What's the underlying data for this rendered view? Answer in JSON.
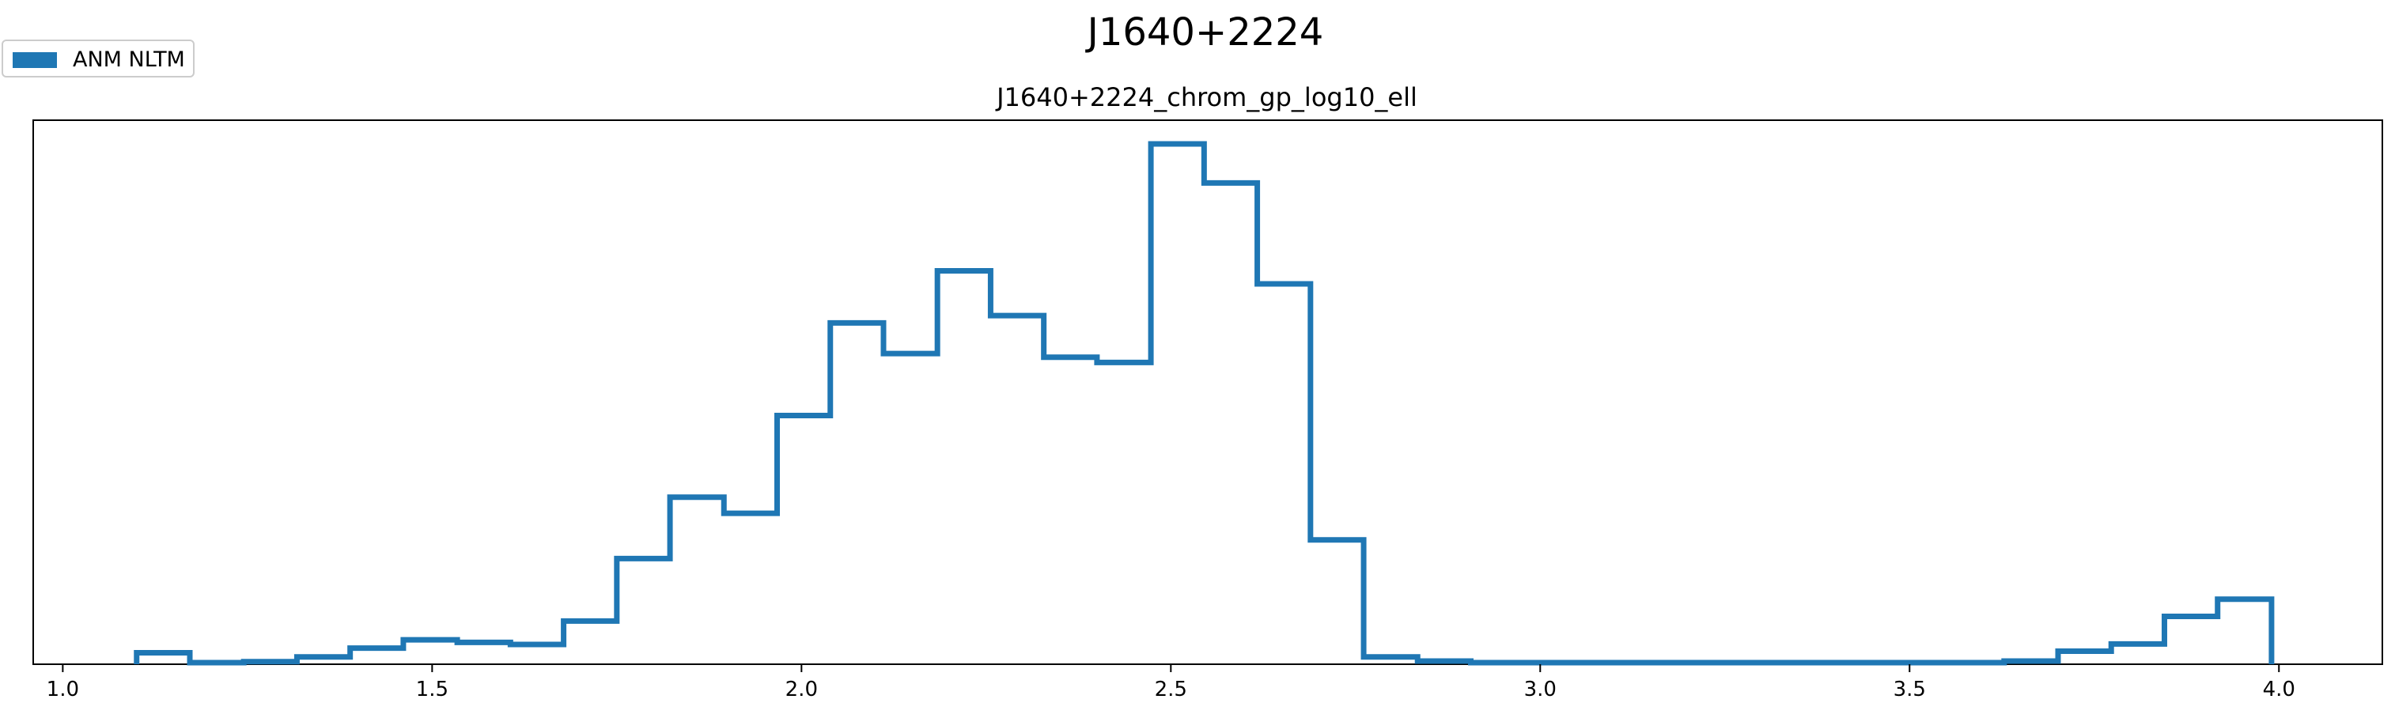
{
  "figure": {
    "suptitle": "J1640+2224"
  },
  "legend": {
    "entries": [
      {
        "label": "ANM NLTM",
        "color": "#1f77b4"
      }
    ]
  },
  "chart_data": {
    "type": "histogram",
    "title": "J1640+2224_chrom_gp_log10_ell",
    "xlabel": "",
    "ylabel": "",
    "xlim": [
      0.96,
      4.14
    ],
    "ylim": [
      0,
      1.0
    ],
    "xticks": [
      1.0,
      1.5,
      2.0,
      2.5,
      3.0,
      3.5,
      4.0
    ],
    "xtick_labels": [
      "1.0",
      "1.5",
      "2.0",
      "2.5",
      "3.0",
      "3.5",
      "4.0"
    ],
    "yticks_visible": false,
    "grid": false,
    "legend_position": "outside-top-left",
    "histtype": "step",
    "series": [
      {
        "name": "ANM NLTM",
        "color": "#1f77b4",
        "bin_edges": [
          1.1,
          1.172,
          1.245,
          1.317,
          1.389,
          1.461,
          1.534,
          1.606,
          1.678,
          1.75,
          1.822,
          1.895,
          1.967,
          2.039,
          2.111,
          2.184,
          2.256,
          2.328,
          2.4,
          2.473,
          2.545,
          2.617,
          2.689,
          2.761,
          2.834,
          2.906,
          2.978,
          3.05,
          3.123,
          3.195,
          3.267,
          3.339,
          3.412,
          3.484,
          3.556,
          3.628,
          3.701,
          3.773,
          3.845,
          3.917,
          3.99
        ],
        "values": [
          0.022,
          0.003,
          0.005,
          0.014,
          0.031,
          0.047,
          0.042,
          0.038,
          0.083,
          0.203,
          0.321,
          0.29,
          0.478,
          0.656,
          0.597,
          0.756,
          0.67,
          0.59,
          0.58,
          1.0,
          0.925,
          0.731,
          0.239,
          0.014,
          0.006,
          0.003,
          0.003,
          0.003,
          0.003,
          0.003,
          0.003,
          0.003,
          0.003,
          0.003,
          0.003,
          0.006,
          0.025,
          0.039,
          0.092,
          0.125
        ]
      }
    ]
  }
}
